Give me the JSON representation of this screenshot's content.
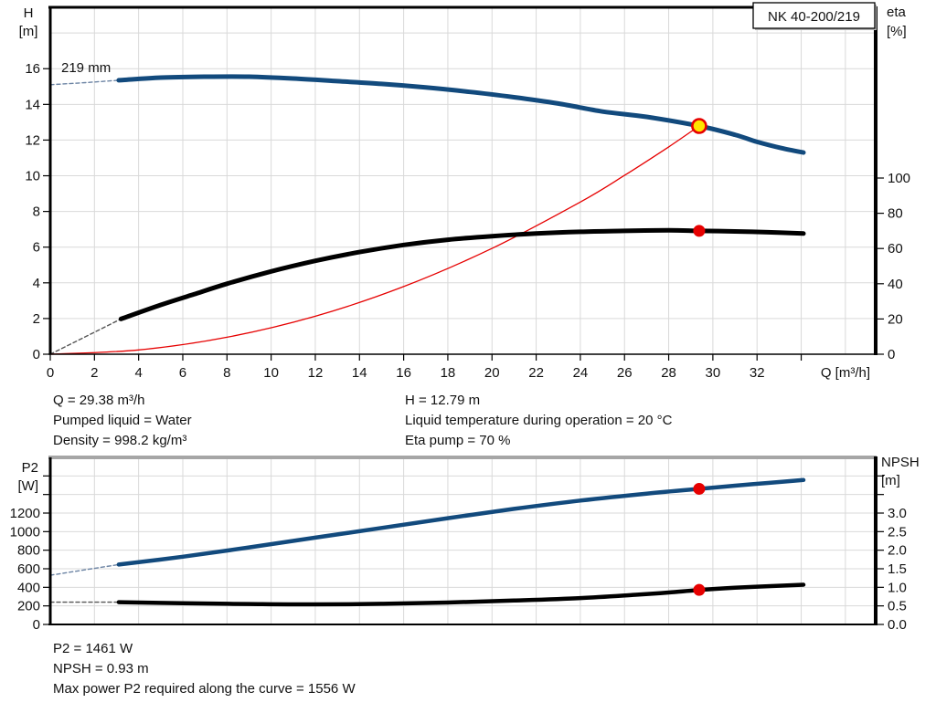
{
  "conditions": {
    "q": "Q = 29.38 m³/h",
    "pumped_liquid": "Pumped liquid = Water",
    "density": "Density = 998.2 kg/m³",
    "h": "H = 12.79 m",
    "liquid_temperature": "Liquid temperature during operation = 20 °C",
    "eta_pump": "Eta pump = 70 %"
  },
  "results": {
    "p2": "P2 = 1461 W",
    "npsh": "NPSH = 0.93 m",
    "max_power": "Max power P2 required along the curve = 1556 W"
  },
  "colors": {
    "curve_blue": "#124a7d",
    "curve_black": "#000000",
    "curve_red": "#e60000",
    "duty_yellow": "#ffe600",
    "grid": "#d9d9d9",
    "dashed_blue": "#6b83a3",
    "dashed_black": "#555555",
    "border_gray": "#a6a6a6",
    "text": "#111111"
  },
  "chart_data": [
    {
      "type": "line",
      "name": "head-efficiency-chart",
      "title_box": "NK 40-200/219",
      "impeller_annotation": "219 mm",
      "x_axis": {
        "label": "Q [m³/h]",
        "min": 0,
        "max": 37.33,
        "tick_labels": [
          "0",
          "2",
          "4",
          "6",
          "8",
          "10",
          "12",
          "14",
          "16",
          "18",
          "20",
          "22",
          "24",
          "26",
          "28",
          "30",
          "32"
        ],
        "unlabeled_ticks": [
          34
        ],
        "grid": {
          "from": 2,
          "to": 36,
          "step": 2
        }
      },
      "left_axis": {
        "label_lines": [
          "H",
          "[m]"
        ],
        "min": 0,
        "max": 19.44,
        "tick_labels": [
          "0",
          "2",
          "4",
          "6",
          "8",
          "10",
          "12",
          "14",
          "16"
        ],
        "unlabeled_ticks": [],
        "grid": {
          "from": 2,
          "to": 18,
          "step": 2
        }
      },
      "right_axis": {
        "label_lines": [
          "eta",
          "[%]"
        ],
        "min": 0,
        "max": 196.9,
        "tick_labels": [
          "0",
          "20",
          "40",
          "60",
          "80",
          "100"
        ],
        "unlabeled_ticks": []
      },
      "series": [
        {
          "name": "head-curve-dashed",
          "axis": "left",
          "style": "dashed",
          "color_key": "dashed_blue",
          "width": 1.4,
          "points": [
            [
              0,
              15.1
            ],
            [
              1.6,
              15.22
            ],
            [
              3.1,
              15.35
            ]
          ]
        },
        {
          "name": "efficiency-curve-dashed",
          "axis": "right",
          "style": "dashed",
          "color_key": "dashed_black",
          "width": 1.4,
          "points": [
            [
              0,
              0
            ],
            [
              3.2,
              20
            ]
          ]
        },
        {
          "name": "system-curve",
          "axis": "left",
          "style": "solid",
          "color_key": "curve_red",
          "width": 1.3,
          "smooth": true,
          "points": [
            [
              0,
              0
            ],
            [
              4,
              0.24
            ],
            [
              8,
              0.95
            ],
            [
              12,
              2.13
            ],
            [
              16,
              3.79
            ],
            [
              20,
              5.93
            ],
            [
              24,
              8.53
            ],
            [
              26,
              10.02
            ],
            [
              28,
              11.62
            ],
            [
              29.38,
              12.79
            ]
          ]
        },
        {
          "name": "head-curve",
          "axis": "left",
          "style": "solid",
          "color_key": "curve_blue",
          "width": 5,
          "smooth": true,
          "points": [
            [
              3.1,
              15.35
            ],
            [
              5,
              15.5
            ],
            [
              7,
              15.55
            ],
            [
              9,
              15.55
            ],
            [
              11,
              15.45
            ],
            [
              13,
              15.3
            ],
            [
              15,
              15.15
            ],
            [
              17,
              14.95
            ],
            [
              19,
              14.7
            ],
            [
              21,
              14.4
            ],
            [
              23,
              14.05
            ],
            [
              25,
              13.6
            ],
            [
              27,
              13.3
            ],
            [
              29.38,
              12.79
            ],
            [
              31,
              12.3
            ],
            [
              32,
              11.9
            ],
            [
              33.1,
              11.55
            ],
            [
              34.1,
              11.3
            ]
          ]
        },
        {
          "name": "efficiency-curve",
          "axis": "right",
          "style": "solid",
          "color_key": "curve_black",
          "width": 5,
          "smooth": true,
          "points": [
            [
              3.2,
              20
            ],
            [
              5,
              28
            ],
            [
              6.5,
              34
            ],
            [
              8,
              40
            ],
            [
              10,
              47
            ],
            [
              12,
              53
            ],
            [
              14,
              58
            ],
            [
              16,
              62
            ],
            [
              18,
              65
            ],
            [
              20,
              67
            ],
            [
              22,
              68.5
            ],
            [
              24,
              69.5
            ],
            [
              26,
              70
            ],
            [
              28,
              70.3
            ],
            [
              29.38,
              70
            ],
            [
              31,
              69.7
            ],
            [
              32.5,
              69.2
            ],
            [
              34.1,
              68.5
            ]
          ]
        }
      ],
      "markers": [
        {
          "name": "duty-point-head",
          "axis": "left",
          "x": 29.38,
          "y": 12.79,
          "style": "yellow-ring"
        },
        {
          "name": "duty-point-efficiency",
          "axis": "right",
          "x": 29.38,
          "y": 70,
          "style": "red-dot"
        }
      ]
    },
    {
      "type": "line",
      "name": "power-npsh-chart",
      "title_box": "",
      "impeller_annotation": "",
      "x_axis": {
        "label": "",
        "min": 0,
        "max": 37.33,
        "tick_labels": [],
        "unlabeled_ticks": [],
        "grid": {
          "from": 2,
          "to": 36,
          "step": 2
        }
      },
      "left_axis": {
        "label_lines": [
          "P2",
          "[W]"
        ],
        "min": 0,
        "max": 1800,
        "tick_labels": [
          "0",
          "200",
          "400",
          "600",
          "800",
          "1000",
          "1200"
        ],
        "unlabeled_ticks": [
          1400,
          1600
        ],
        "grid": {
          "from": 200,
          "to": 1600,
          "step": 200
        }
      },
      "right_axis": {
        "label_lines": [
          "NPSH",
          "[m]"
        ],
        "min": 0,
        "max": 4.5,
        "tick_labels": [
          "0.0",
          "0.5",
          "1.0",
          "1.5",
          "2.0",
          "2.5",
          "3.0"
        ],
        "unlabeled_ticks": [
          3.5,
          4
        ]
      },
      "series": [
        {
          "name": "power-curve-dashed",
          "axis": "left",
          "style": "dashed",
          "color_key": "dashed_blue",
          "width": 1.4,
          "points": [
            [
              0,
              530
            ],
            [
              3.1,
              645
            ]
          ]
        },
        {
          "name": "npsh-curve-dashed",
          "axis": "right",
          "style": "dashed",
          "color_key": "dashed_black",
          "width": 1.4,
          "points": [
            [
              0,
              0.6
            ],
            [
              3.1,
              0.6
            ]
          ]
        },
        {
          "name": "power-curve",
          "axis": "left",
          "style": "solid",
          "color_key": "curve_blue",
          "width": 4.5,
          "smooth": true,
          "points": [
            [
              3.1,
              645
            ],
            [
              6,
              730
            ],
            [
              9,
              830
            ],
            [
              12,
              935
            ],
            [
              15,
              1040
            ],
            [
              18,
              1145
            ],
            [
              21,
              1245
            ],
            [
              24,
              1335
            ],
            [
              27,
              1410
            ],
            [
              29.38,
              1461
            ],
            [
              31,
              1495
            ],
            [
              32.5,
              1525
            ],
            [
              34.1,
              1556
            ]
          ]
        },
        {
          "name": "npsh-curve",
          "axis": "right",
          "style": "solid",
          "color_key": "curve_black",
          "width": 4.5,
          "smooth": true,
          "points": [
            [
              3.1,
              0.6
            ],
            [
              6,
              0.57
            ],
            [
              9,
              0.55
            ],
            [
              12,
              0.54
            ],
            [
              15,
              0.555
            ],
            [
              18,
              0.59
            ],
            [
              21,
              0.645
            ],
            [
              24,
              0.71
            ],
            [
              26.5,
              0.8
            ],
            [
              28,
              0.86
            ],
            [
              29.38,
              0.93
            ],
            [
              31,
              0.99
            ],
            [
              32.5,
              1.03
            ],
            [
              34.1,
              1.07
            ]
          ]
        }
      ],
      "markers": [
        {
          "name": "duty-point-power",
          "axis": "left",
          "x": 29.38,
          "y": 1461,
          "style": "red-dot"
        },
        {
          "name": "duty-point-npsh",
          "axis": "right",
          "x": 29.38,
          "y": 0.93,
          "style": "red-dot"
        }
      ]
    }
  ]
}
